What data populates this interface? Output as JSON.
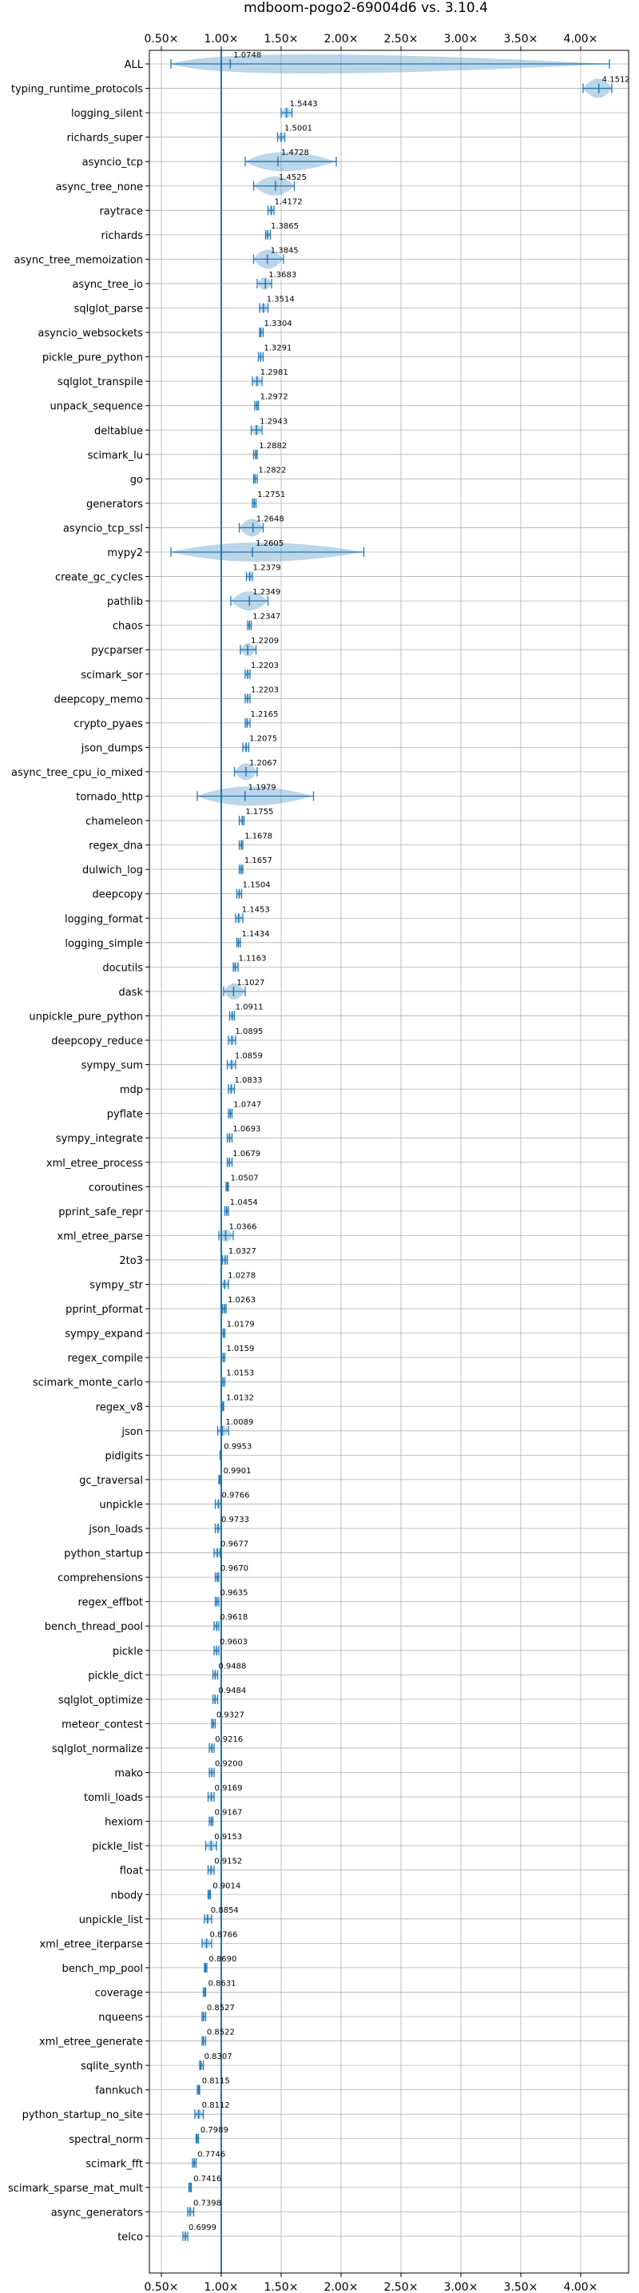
{
  "chart_data": {
    "type": "violin",
    "title": "mdboom-pogo2-69004d6 vs. 3.10.4",
    "xlabel": "",
    "ylabel": "",
    "x_ticks": [
      "0.50×",
      "1.00×",
      "1.50×",
      "2.00×",
      "2.50×",
      "3.00×",
      "3.50×",
      "4.00×"
    ],
    "x_tick_values": [
      0.5,
      1.0,
      1.5,
      2.0,
      2.5,
      3.0,
      3.5,
      4.0
    ],
    "xlim": [
      0.4,
      4.4
    ],
    "reference_line": 1.0,
    "grid": true,
    "colors": {
      "violin": "#1f77b4",
      "line": "#1f77b4",
      "grid": "#b0b0b0"
    },
    "categories": [
      "ALL",
      "typing_runtime_protocols",
      "logging_silent",
      "richards_super",
      "asyncio_tcp",
      "async_tree_none",
      "raytrace",
      "richards",
      "async_tree_memoization",
      "async_tree_io",
      "sqlglot_parse",
      "asyncio_websockets",
      "pickle_pure_python",
      "sqlglot_transpile",
      "unpack_sequence",
      "deltablue",
      "scimark_lu",
      "go",
      "generators",
      "asyncio_tcp_ssl",
      "mypy2",
      "create_gc_cycles",
      "pathlib",
      "chaos",
      "pycparser",
      "scimark_sor",
      "deepcopy_memo",
      "crypto_pyaes",
      "json_dumps",
      "async_tree_cpu_io_mixed",
      "tornado_http",
      "chameleon",
      "regex_dna",
      "dulwich_log",
      "deepcopy",
      "logging_format",
      "logging_simple",
      "docutils",
      "dask",
      "unpickle_pure_python",
      "deepcopy_reduce",
      "sympy_sum",
      "mdp",
      "pyflate",
      "sympy_integrate",
      "xml_etree_process",
      "coroutines",
      "pprint_safe_repr",
      "xml_etree_parse",
      "2to3",
      "sympy_str",
      "pprint_pformat",
      "sympy_expand",
      "regex_compile",
      "scimark_monte_carlo",
      "regex_v8",
      "json",
      "pidigits",
      "gc_traversal",
      "unpickle",
      "json_loads",
      "python_startup",
      "comprehensions",
      "regex_effbot",
      "bench_thread_pool",
      "pickle",
      "pickle_dict",
      "sqlglot_optimize",
      "meteor_contest",
      "sqlglot_normalize",
      "mako",
      "tomli_loads",
      "hexiom",
      "pickle_list",
      "float",
      "nbody",
      "unpickle_list",
      "xml_etree_iterparse",
      "bench_mp_pool",
      "coverage",
      "nqueens",
      "xml_etree_generate",
      "sqlite_synth",
      "fannkuch",
      "python_startup_no_site",
      "spectral_norm",
      "scimark_fft",
      "scimark_sparse_mat_mult",
      "async_generators",
      "telco"
    ],
    "value_labels": [
      "1.0748",
      "4.1512",
      "1.5443",
      "1.5001",
      "1.4728",
      "1.4525",
      "1.4172",
      "1.3865",
      "1.3845",
      "1.3683",
      "1.3514",
      "1.3304",
      "1.3291",
      "1.2981",
      "1.2972",
      "1.2943",
      "1.2882",
      "1.2822",
      "1.2751",
      "1.2648",
      "1.2605",
      "1.2379",
      "1.2349",
      "1.2347",
      "1.2209",
      "1.2203",
      "1.2203",
      "1.2165",
      "1.2075",
      "1.2067",
      "1.1979",
      "1.1755",
      "1.1678",
      "1.1657",
      "1.1504",
      "1.1453",
      "1.1434",
      "1.1163",
      "1.1027",
      "1.0911",
      "1.0895",
      "1.0859",
      "1.0833",
      "1.0747",
      "1.0693",
      "1.0679",
      "1.0507",
      "1.0454",
      "1.0366",
      "1.0327",
      "1.0278",
      "1.0263",
      "1.0179",
      "1.0159",
      "1.0153",
      "1.0132",
      "1.0089",
      "0.9953",
      "0.9901",
      "0.9766",
      "0.9733",
      "0.9677",
      "0.9670",
      "0.9635",
      "0.9618",
      "0.9603",
      "0.9488",
      "0.9484",
      "0.9327",
      "0.9216",
      "0.9200",
      "0.9169",
      "0.9167",
      "0.9153",
      "0.9152",
      "0.9014",
      "0.8854",
      "0.8766",
      "0.8690",
      "0.8631",
      "0.8527",
      "0.8522",
      "0.8307",
      "0.8115",
      "0.8112",
      "0.7989",
      "0.7746",
      "0.7416",
      "0.7398",
      "0.6999"
    ],
    "values": [
      1.0748,
      4.1512,
      1.5443,
      1.5001,
      1.4728,
      1.4525,
      1.4172,
      1.3865,
      1.3845,
      1.3683,
      1.3514,
      1.3304,
      1.3291,
      1.2981,
      1.2972,
      1.2943,
      1.2882,
      1.2822,
      1.2751,
      1.2648,
      1.2605,
      1.2379,
      1.2349,
      1.2347,
      1.2209,
      1.2203,
      1.2203,
      1.2165,
      1.2075,
      1.2067,
      1.1979,
      1.1755,
      1.1678,
      1.1657,
      1.1504,
      1.1453,
      1.1434,
      1.1163,
      1.1027,
      1.0911,
      1.0895,
      1.0859,
      1.0833,
      1.0747,
      1.0693,
      1.0679,
      1.0507,
      1.0454,
      1.0366,
      1.0327,
      1.0278,
      1.0263,
      1.0179,
      1.0159,
      1.0153,
      1.0132,
      1.0089,
      0.9953,
      0.9901,
      0.9766,
      0.9733,
      0.9677,
      0.967,
      0.9635,
      0.9618,
      0.9603,
      0.9488,
      0.9484,
      0.9327,
      0.9216,
      0.92,
      0.9169,
      0.9167,
      0.9153,
      0.9152,
      0.9014,
      0.8854,
      0.8766,
      0.869,
      0.8631,
      0.8527,
      0.8522,
      0.8307,
      0.8115,
      0.8112,
      0.7989,
      0.7746,
      0.7416,
      0.7398,
      0.6999
    ],
    "ranges": [
      [
        0.58,
        4.24
      ],
      [
        4.02,
        4.26
      ],
      [
        1.5,
        1.59
      ],
      [
        1.47,
        1.53
      ],
      [
        1.2,
        1.96
      ],
      [
        1.27,
        1.61
      ],
      [
        1.39,
        1.44
      ],
      [
        1.37,
        1.41
      ],
      [
        1.27,
        1.52
      ],
      [
        1.3,
        1.42
      ],
      [
        1.32,
        1.39
      ],
      [
        1.32,
        1.35
      ],
      [
        1.31,
        1.35
      ],
      [
        1.26,
        1.34
      ],
      [
        1.28,
        1.31
      ],
      [
        1.25,
        1.34
      ],
      [
        1.27,
        1.3
      ],
      [
        1.27,
        1.3
      ],
      [
        1.26,
        1.29
      ],
      [
        1.15,
        1.35
      ],
      [
        0.58,
        2.19
      ],
      [
        1.21,
        1.26
      ],
      [
        1.08,
        1.39
      ],
      [
        1.22,
        1.25
      ],
      [
        1.16,
        1.29
      ],
      [
        1.2,
        1.24
      ],
      [
        1.2,
        1.24
      ],
      [
        1.2,
        1.24
      ],
      [
        1.18,
        1.23
      ],
      [
        1.11,
        1.3
      ],
      [
        0.8,
        1.77
      ],
      [
        1.15,
        1.19
      ],
      [
        1.15,
        1.18
      ],
      [
        1.15,
        1.18
      ],
      [
        1.13,
        1.17
      ],
      [
        1.12,
        1.18
      ],
      [
        1.13,
        1.16
      ],
      [
        1.1,
        1.14
      ],
      [
        1.02,
        1.2
      ],
      [
        1.07,
        1.11
      ],
      [
        1.06,
        1.12
      ],
      [
        1.05,
        1.12
      ],
      [
        1.06,
        1.11
      ],
      [
        1.06,
        1.09
      ],
      [
        1.05,
        1.09
      ],
      [
        1.05,
        1.09
      ],
      [
        1.04,
        1.06
      ],
      [
        1.03,
        1.06
      ],
      [
        0.98,
        1.1
      ],
      [
        1.01,
        1.05
      ],
      [
        1.0,
        1.06
      ],
      [
        1.01,
        1.04
      ],
      [
        1.0,
        1.03
      ],
      [
        1.0,
        1.03
      ],
      [
        1.0,
        1.03
      ],
      [
        1.0,
        1.02
      ],
      [
        0.97,
        1.06
      ],
      [
        0.99,
        1.0
      ],
      [
        0.98,
        1.0
      ],
      [
        0.95,
        1.0
      ],
      [
        0.95,
        1.0
      ],
      [
        0.94,
        0.99
      ],
      [
        0.95,
        0.98
      ],
      [
        0.95,
        0.98
      ],
      [
        0.94,
        0.98
      ],
      [
        0.94,
        0.98
      ],
      [
        0.93,
        0.97
      ],
      [
        0.93,
        0.97
      ],
      [
        0.92,
        0.95
      ],
      [
        0.9,
        0.94
      ],
      [
        0.9,
        0.94
      ],
      [
        0.89,
        0.94
      ],
      [
        0.9,
        0.93
      ],
      [
        0.87,
        0.96
      ],
      [
        0.89,
        0.94
      ],
      [
        0.89,
        0.91
      ],
      [
        0.86,
        0.92
      ],
      [
        0.84,
        0.92
      ],
      [
        0.86,
        0.88
      ],
      [
        0.85,
        0.87
      ],
      [
        0.84,
        0.87
      ],
      [
        0.84,
        0.87
      ],
      [
        0.82,
        0.85
      ],
      [
        0.8,
        0.82
      ],
      [
        0.78,
        0.85
      ],
      [
        0.79,
        0.81
      ],
      [
        0.76,
        0.79
      ],
      [
        0.73,
        0.75
      ],
      [
        0.72,
        0.77
      ],
      [
        0.68,
        0.72
      ]
    ]
  }
}
